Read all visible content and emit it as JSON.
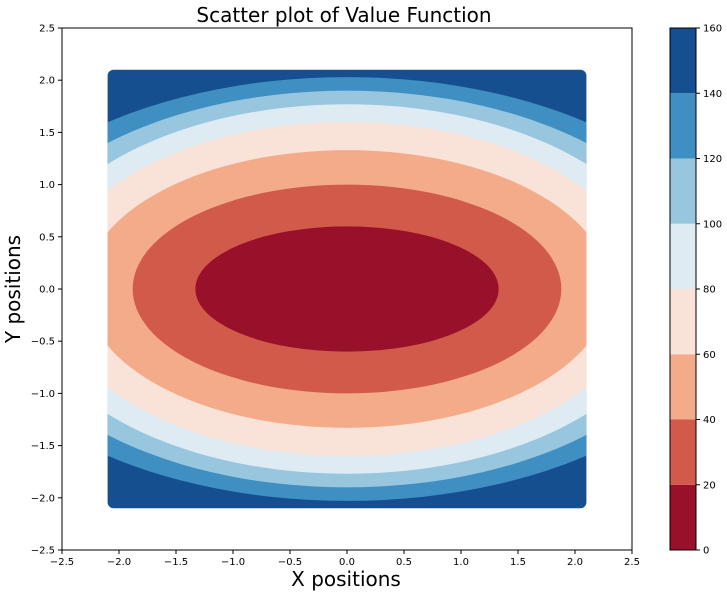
{
  "chart_data": {
    "type": "heatmap",
    "subtype": "filled-contour",
    "title": "Scatter plot of Value Function",
    "xlabel": "X positions",
    "ylabel": "Y positions",
    "xlim": [
      -2.5,
      2.5
    ],
    "ylim": [
      -2.5,
      2.5
    ],
    "xticks": [
      -2.5,
      -2.0,
      -1.5,
      -1.0,
      -0.5,
      0.0,
      0.5,
      1.0,
      1.5,
      2.0,
      2.5
    ],
    "yticks": [
      -2.5,
      -2.0,
      -1.5,
      -1.0,
      -0.5,
      0.0,
      0.5,
      1.0,
      1.5,
      2.0,
      2.5
    ],
    "xtick_labels": [
      "−2.5",
      "−2.0",
      "−1.5",
      "−1.0",
      "−0.5",
      "0.0",
      "0.5",
      "1.0",
      "1.5",
      "2.0",
      "2.5"
    ],
    "ytick_labels": [
      "−2.5",
      "−2.0",
      "−1.5",
      "−1.0",
      "−0.5",
      "0.0",
      "0.5",
      "1.0",
      "1.5",
      "2.0",
      "2.5"
    ],
    "data_extent": {
      "x": [
        -2.1,
        2.1
      ],
      "y": [
        -2.1,
        2.1
      ]
    },
    "grid": false,
    "colorbar": {
      "position": "right",
      "levels": [
        0,
        20,
        40,
        60,
        80,
        100,
        120,
        140,
        160
      ],
      "tick_labels": [
        "0",
        "20",
        "40",
        "60",
        "80",
        "100",
        "120",
        "140",
        "160"
      ],
      "colors": [
        "#98102a",
        "#d15a4a",
        "#f3ab8a",
        "#f9e2d7",
        "#deebf3",
        "#98c6df",
        "#3f8fc3",
        "#154f8f"
      ],
      "colormap": "RdBu"
    },
    "contour_bands": [
      {
        "range": [
          0,
          20
        ],
        "color": "#98102a",
        "x_extent": 1.33,
        "y_extent": 0.6
      },
      {
        "range": [
          20,
          40
        ],
        "color": "#d15a4a",
        "x_extent": 1.88,
        "y_extent": 1.0
      },
      {
        "range": [
          40,
          60
        ],
        "color": "#f3ab8a",
        "x_extent": 2.3,
        "y_extent": 1.33
      },
      {
        "range": [
          60,
          80
        ],
        "color": "#f9e2d7",
        "x_extent": 2.6,
        "y_extent": 1.6
      },
      {
        "range": [
          80,
          100
        ],
        "color": "#deebf3",
        "x_extent": 2.85,
        "y_extent": 1.77
      },
      {
        "range": [
          100,
          120
        ],
        "color": "#98c6df",
        "x_extent": 3.1,
        "y_extent": 1.9
      },
      {
        "range": [
          120,
          140
        ],
        "color": "#3f8fc3",
        "x_extent": 3.4,
        "y_extent": 2.03
      },
      {
        "range": [
          140,
          160
        ],
        "color": "#154f8f",
        "x_extent": null,
        "y_extent": null
      }
    ]
  }
}
